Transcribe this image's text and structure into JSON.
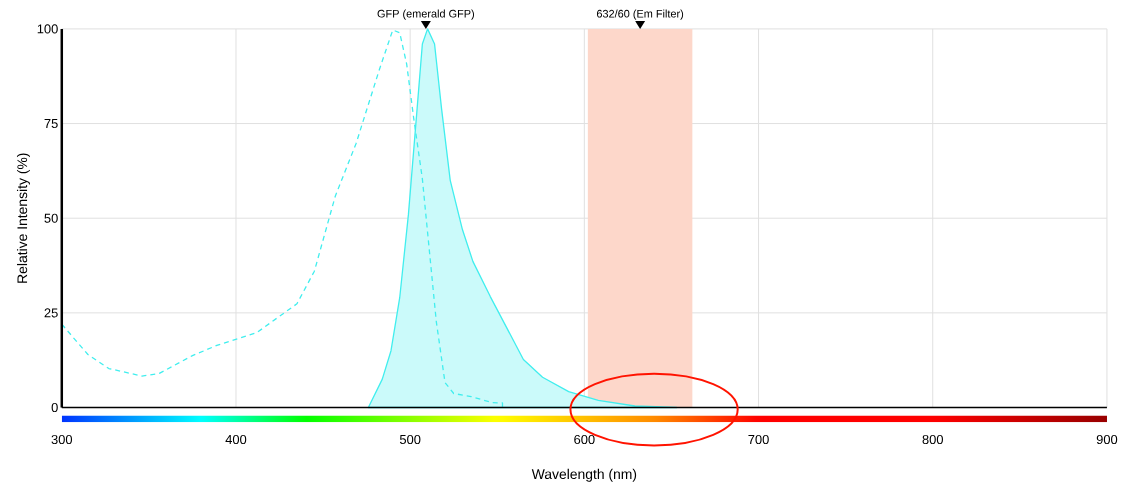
{
  "chart_data": {
    "type": "line",
    "xlabel": "Wavelength (nm)",
    "ylabel": "Relative Intensity (%)",
    "xlim": [
      300,
      900
    ],
    "ylim": [
      0,
      100
    ],
    "xticks": [
      300,
      400,
      500,
      600,
      700,
      800,
      900
    ],
    "yticks": [
      0,
      25,
      50,
      75,
      100
    ],
    "grid": true,
    "series": [
      {
        "type": "area",
        "color": "#40eeee",
        "x": [
          476,
          484,
          489,
          494,
          499,
          504,
          507,
          510,
          514,
          518,
          523,
          530,
          536,
          546,
          565,
          576,
          591,
          608,
          629,
          653
        ],
        "values": [
          0,
          7.5,
          15,
          29,
          51,
          79,
          96,
          100,
          96,
          79,
          60,
          47,
          38.6,
          29.3,
          12.7,
          8,
          4.2,
          1.9,
          0.4,
          0
        ]
      },
      {
        "line_style": "dashed",
        "color": "#40eeee",
        "x": [
          300,
          315,
          327,
          346,
          356,
          375,
          389,
          412,
          435,
          445,
          457,
          469,
          482,
          490,
          494,
          498,
          502,
          507,
          511,
          515,
          520,
          525,
          535,
          547,
          553,
          553
        ],
        "values": [
          22,
          14,
          10.3,
          8.3,
          9,
          13.7,
          16.4,
          19.8,
          27.4,
          36,
          55.8,
          69.8,
          88.8,
          99.7,
          99,
          90.7,
          76.5,
          60.4,
          41.5,
          22.7,
          6.6,
          3.7,
          2.9,
          1.3,
          1.2,
          0
        ]
      }
    ],
    "bands": [
      {
        "axis": "x",
        "from": 602,
        "to": 662,
        "label": "632/60 (Em Filter)",
        "color": "#fdd7ca"
      }
    ],
    "annotations": [
      {
        "text": "GFP (emerald GFP)",
        "x": 509,
        "y": 100
      }
    ]
  }
}
